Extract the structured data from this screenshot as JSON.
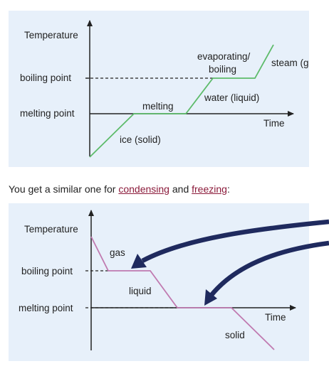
{
  "heating_diagram": {
    "y_axis_label": "Temperature",
    "x_axis_label": "Time",
    "boiling_point_label": "boiling point",
    "melting_point_label": "melting point",
    "stage_ice": "ice (solid)",
    "stage_melting": "melting",
    "stage_water": "water (liquid)",
    "stage_evaporating_line1": "evaporating/",
    "stage_evaporating_line2": "boiling",
    "stage_steam": "steam (gas)",
    "line_color": "#5dbb6a"
  },
  "sentence": {
    "before": "You get a similar one for ",
    "link1": "condensing",
    "middle": " and ",
    "link2": "freezing",
    "after": ":"
  },
  "cooling_diagram": {
    "y_axis_label": "Temperature",
    "x_axis_label": "Time",
    "boiling_point_label": "boiling point",
    "melting_point_label": "melting point",
    "stage_gas": "gas",
    "stage_liquid": "liquid",
    "stage_solid": "solid",
    "line_color": "#c07ab0"
  },
  "colors": {
    "panel_background": "#e7f0fa",
    "axis": "#222222",
    "link": "#8b1a3a",
    "arrow": "#1f2a5e"
  }
}
